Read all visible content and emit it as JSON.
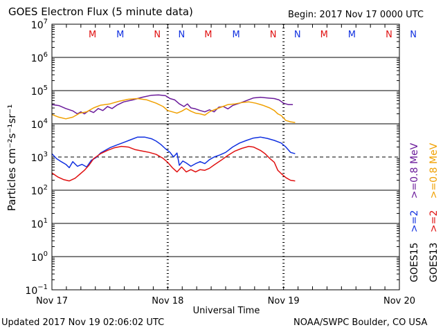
{
  "header": {
    "title": "GOES Electron Flux (5 minute data)",
    "begin": "Begin: 2017 Nov 17 0000 UTC"
  },
  "footer": {
    "updated": "Updated 2017 Nov 19 02:06:02 UTC",
    "credit": "NOAA/SWPC Boulder, CO USA"
  },
  "colors": {
    "goes15_2mev": "#1030e0",
    "goes13_2mev": "#e01010",
    "goes15_08mev": "#6a1a9a",
    "goes13_08mev": "#f0a000",
    "marker_m": "#e01010",
    "marker_n": "#1030e0"
  },
  "markers": [
    {
      "label": "M",
      "goes": "13",
      "t": 0.35
    },
    {
      "label": "M",
      "goes": "15",
      "t": 0.59
    },
    {
      "label": "N",
      "goes": "13",
      "t": 0.91
    },
    {
      "label": "N",
      "goes": "15",
      "t": 1.12
    },
    {
      "label": "M",
      "goes": "13",
      "t": 1.35
    },
    {
      "label": "M",
      "goes": "15",
      "t": 1.59
    },
    {
      "label": "N",
      "goes": "13",
      "t": 1.91
    },
    {
      "label": "N",
      "goes": "15",
      "t": 2.12
    },
    {
      "label": "M",
      "goes": "13",
      "t": 2.35
    },
    {
      "label": "M",
      "goes": "15",
      "t": 2.59
    },
    {
      "label": "N",
      "goes": "13",
      "t": 2.91
    },
    {
      "label": "N",
      "goes": "15",
      "t": 3.12
    }
  ],
  "chart_data": {
    "type": "line",
    "title": "GOES Electron Flux (5 minute data)",
    "xlabel": "Universal Time",
    "ylabel": "Particles cm⁻²s⁻¹sr⁻¹",
    "yscale": "log",
    "x_unit": "days since 2017 Nov 17 0000 UTC",
    "xlim": [
      0,
      3
    ],
    "ylim_exponent": [
      -1,
      7
    ],
    "x_ticks": [
      {
        "t": 0,
        "label": "Nov 17"
      },
      {
        "t": 1,
        "label": "Nov 18"
      },
      {
        "t": 2,
        "label": "Nov 19"
      },
      {
        "t": 3,
        "label": "Nov 20"
      }
    ],
    "y_ticks": [
      {
        "base": "10",
        "exp": "7",
        "value": 7
      },
      {
        "base": "10",
        "exp": "6",
        "value": 6
      },
      {
        "base": "10",
        "exp": "5",
        "value": 5
      },
      {
        "base": "10",
        "exp": "4",
        "value": 4
      },
      {
        "base": "10",
        "exp": "3",
        "value": 3
      },
      {
        "base": "10",
        "exp": "2",
        "value": 2
      },
      {
        "base": "10",
        "exp": "1",
        "value": 1
      },
      {
        "base": "10",
        "exp": "0",
        "value": 0
      },
      {
        "base": "10",
        "exp": "−1",
        "value": -1
      }
    ],
    "threshold": {
      "value": 3,
      "style": "dashed"
    },
    "legend": [
      {
        "id": "goes13_08mev",
        "text": "GOES13 >=0.8 MeV",
        "sat": "GOES13",
        "ch": ">=2",
        "ch2": ">=0.8 MeV"
      },
      {
        "id": "goes15_08mev",
        "text": "GOES15 >=0.8 MeV",
        "sat": "GOES15",
        "ch": ">=2",
        "ch2": ">=0.8 MeV"
      }
    ],
    "legend_labels": {
      "goes13": {
        "sat": "GOES13",
        "e2": ">=2",
        "e08": ">=0.8 MeV"
      },
      "goes15": {
        "sat": "GOES15",
        "e2": ">=2",
        "e08": ">=0.8 MeV"
      }
    },
    "series": [
      {
        "id": "goes15_08mev",
        "name": "GOES15 >=0.8 MeV",
        "points": [
          [
            0.0,
            4.58
          ],
          [
            0.06,
            4.55
          ],
          [
            0.12,
            4.46
          ],
          [
            0.18,
            4.39
          ],
          [
            0.22,
            4.3
          ],
          [
            0.25,
            4.36
          ],
          [
            0.28,
            4.3
          ],
          [
            0.32,
            4.4
          ],
          [
            0.36,
            4.34
          ],
          [
            0.4,
            4.46
          ],
          [
            0.44,
            4.4
          ],
          [
            0.48,
            4.52
          ],
          [
            0.52,
            4.46
          ],
          [
            0.56,
            4.56
          ],
          [
            0.62,
            4.66
          ],
          [
            0.7,
            4.72
          ],
          [
            0.78,
            4.8
          ],
          [
            0.86,
            4.86
          ],
          [
            0.92,
            4.87
          ],
          [
            0.98,
            4.85
          ],
          [
            1.02,
            4.76
          ],
          [
            1.06,
            4.72
          ],
          [
            1.1,
            4.6
          ],
          [
            1.14,
            4.52
          ],
          [
            1.17,
            4.6
          ],
          [
            1.2,
            4.48
          ],
          [
            1.24,
            4.45
          ],
          [
            1.28,
            4.4
          ],
          [
            1.32,
            4.36
          ],
          [
            1.36,
            4.42
          ],
          [
            1.4,
            4.36
          ],
          [
            1.44,
            4.5
          ],
          [
            1.48,
            4.52
          ],
          [
            1.52,
            4.45
          ],
          [
            1.56,
            4.55
          ],
          [
            1.62,
            4.62
          ],
          [
            1.68,
            4.7
          ],
          [
            1.74,
            4.78
          ],
          [
            1.8,
            4.8
          ],
          [
            1.86,
            4.78
          ],
          [
            1.92,
            4.76
          ],
          [
            1.96,
            4.72
          ],
          [
            2.0,
            4.62
          ],
          [
            2.04,
            4.58
          ],
          [
            2.08,
            4.58
          ]
        ]
      },
      {
        "id": "goes13_08mev",
        "name": "GOES13 >=0.8 MeV",
        "points": [
          [
            0.0,
            4.28
          ],
          [
            0.06,
            4.2
          ],
          [
            0.12,
            4.15
          ],
          [
            0.18,
            4.2
          ],
          [
            0.24,
            4.32
          ],
          [
            0.3,
            4.36
          ],
          [
            0.36,
            4.48
          ],
          [
            0.42,
            4.56
          ],
          [
            0.5,
            4.6
          ],
          [
            0.58,
            4.68
          ],
          [
            0.66,
            4.74
          ],
          [
            0.74,
            4.76
          ],
          [
            0.82,
            4.72
          ],
          [
            0.9,
            4.62
          ],
          [
            0.96,
            4.52
          ],
          [
            1.0,
            4.4
          ],
          [
            1.04,
            4.36
          ],
          [
            1.08,
            4.32
          ],
          [
            1.12,
            4.38
          ],
          [
            1.16,
            4.46
          ],
          [
            1.2,
            4.38
          ],
          [
            1.24,
            4.32
          ],
          [
            1.28,
            4.3
          ],
          [
            1.32,
            4.26
          ],
          [
            1.36,
            4.36
          ],
          [
            1.4,
            4.42
          ],
          [
            1.46,
            4.5
          ],
          [
            1.52,
            4.58
          ],
          [
            1.58,
            4.6
          ],
          [
            1.64,
            4.64
          ],
          [
            1.7,
            4.66
          ],
          [
            1.76,
            4.62
          ],
          [
            1.82,
            4.56
          ],
          [
            1.88,
            4.48
          ],
          [
            1.92,
            4.4
          ],
          [
            1.95,
            4.3
          ],
          [
            1.98,
            4.25
          ],
          [
            2.02,
            4.1
          ],
          [
            2.06,
            4.06
          ],
          [
            2.1,
            4.04
          ]
        ]
      },
      {
        "id": "goes15_2mev",
        "name": "GOES15 >=2 MeV",
        "points": [
          [
            0.0,
            3.1
          ],
          [
            0.04,
            2.95
          ],
          [
            0.08,
            2.86
          ],
          [
            0.12,
            2.78
          ],
          [
            0.15,
            2.68
          ],
          [
            0.18,
            2.86
          ],
          [
            0.22,
            2.72
          ],
          [
            0.26,
            2.78
          ],
          [
            0.3,
            2.7
          ],
          [
            0.34,
            2.9
          ],
          [
            0.38,
            2.98
          ],
          [
            0.42,
            3.12
          ],
          [
            0.46,
            3.2
          ],
          [
            0.5,
            3.28
          ],
          [
            0.56,
            3.36
          ],
          [
            0.62,
            3.44
          ],
          [
            0.68,
            3.52
          ],
          [
            0.74,
            3.6
          ],
          [
            0.8,
            3.6
          ],
          [
            0.86,
            3.55
          ],
          [
            0.9,
            3.48
          ],
          [
            0.94,
            3.38
          ],
          [
            0.98,
            3.25
          ],
          [
            1.02,
            3.14
          ],
          [
            1.05,
            3.0
          ],
          [
            1.08,
            3.12
          ],
          [
            1.1,
            2.75
          ],
          [
            1.13,
            2.88
          ],
          [
            1.16,
            2.82
          ],
          [
            1.2,
            2.72
          ],
          [
            1.24,
            2.8
          ],
          [
            1.28,
            2.86
          ],
          [
            1.32,
            2.8
          ],
          [
            1.36,
            2.92
          ],
          [
            1.4,
            3.0
          ],
          [
            1.45,
            3.06
          ],
          [
            1.5,
            3.14
          ],
          [
            1.56,
            3.3
          ],
          [
            1.62,
            3.42
          ],
          [
            1.68,
            3.5
          ],
          [
            1.74,
            3.57
          ],
          [
            1.8,
            3.6
          ],
          [
            1.86,
            3.56
          ],
          [
            1.92,
            3.5
          ],
          [
            1.98,
            3.42
          ],
          [
            2.02,
            3.3
          ],
          [
            2.06,
            3.14
          ],
          [
            2.1,
            3.1
          ]
        ]
      },
      {
        "id": "goes13_2mev",
        "name": "GOES13 >=2 MeV",
        "points": [
          [
            0.0,
            2.52
          ],
          [
            0.05,
            2.4
          ],
          [
            0.1,
            2.32
          ],
          [
            0.15,
            2.28
          ],
          [
            0.2,
            2.36
          ],
          [
            0.24,
            2.48
          ],
          [
            0.28,
            2.6
          ],
          [
            0.32,
            2.75
          ],
          [
            0.36,
            2.95
          ],
          [
            0.42,
            3.1
          ],
          [
            0.48,
            3.2
          ],
          [
            0.54,
            3.28
          ],
          [
            0.6,
            3.32
          ],
          [
            0.66,
            3.3
          ],
          [
            0.72,
            3.22
          ],
          [
            0.78,
            3.18
          ],
          [
            0.84,
            3.14
          ],
          [
            0.9,
            3.08
          ],
          [
            0.96,
            2.96
          ],
          [
            1.0,
            2.84
          ],
          [
            1.04,
            2.68
          ],
          [
            1.08,
            2.55
          ],
          [
            1.12,
            2.7
          ],
          [
            1.16,
            2.55
          ],
          [
            1.2,
            2.62
          ],
          [
            1.24,
            2.55
          ],
          [
            1.28,
            2.62
          ],
          [
            1.32,
            2.6
          ],
          [
            1.36,
            2.66
          ],
          [
            1.4,
            2.76
          ],
          [
            1.46,
            2.9
          ],
          [
            1.52,
            3.05
          ],
          [
            1.58,
            3.18
          ],
          [
            1.64,
            3.26
          ],
          [
            1.7,
            3.32
          ],
          [
            1.74,
            3.3
          ],
          [
            1.8,
            3.2
          ],
          [
            1.84,
            3.1
          ],
          [
            1.88,
            2.96
          ],
          [
            1.92,
            2.84
          ],
          [
            1.95,
            2.6
          ],
          [
            1.98,
            2.5
          ],
          [
            2.02,
            2.38
          ],
          [
            2.06,
            2.3
          ],
          [
            2.1,
            2.28
          ]
        ]
      }
    ]
  }
}
